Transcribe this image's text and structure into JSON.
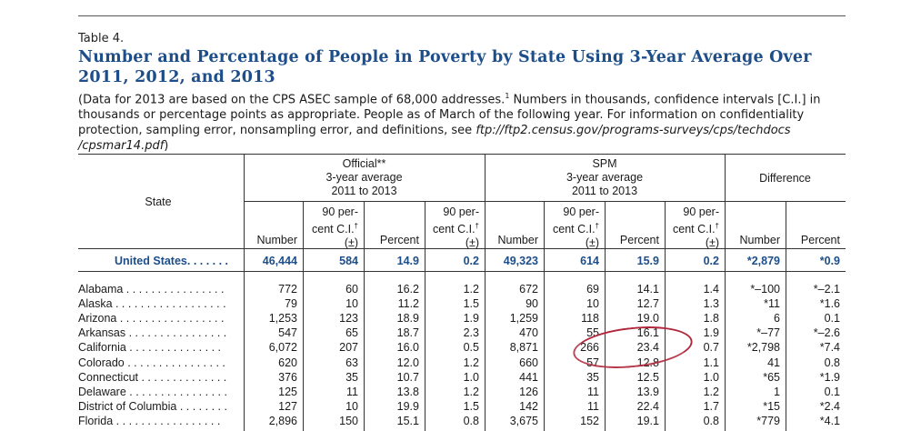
{
  "table_label": "Table 4.",
  "title": "Number and Percentage of People in Poverty by State Using 3-Year Average Over 2011, 2012, and 2013",
  "note": {
    "part1": "(Data for 2013 are based on the CPS ASEC sample of 68,000 addresses.",
    "footnote_mark": "1",
    "part2": " Numbers in thousands, confidence intervals [C.I.] in thousands or percentage points as appropriate. People as of March of the following year. For information on confidentiality protection, sampling error, nonsampling error, and definitions, see ",
    "ftp": "ftp://ftp2.census.gov/programs-surveys/cps/techdocs /cpsmar14.pdf",
    "close": ")"
  },
  "headers": {
    "state": "State",
    "official": [
      "Official**",
      "3-year average",
      "2011 to 2013"
    ],
    "spm": [
      "SPM",
      "3-year average",
      "2011 to 2013"
    ],
    "difference": "Difference",
    "number": "Number",
    "percent": "Percent",
    "ci_line1": "90 per-",
    "ci_line2": "cent C.I.",
    "dagger": "†",
    "pm": "(±)"
  },
  "us_row": {
    "state": "United States. . . . . . .",
    "values": [
      "46,444",
      "584",
      "14.9",
      "0.2",
      "49,323",
      "614",
      "15.9",
      "0.2",
      "*2,879",
      "*0.9"
    ]
  },
  "rows": [
    {
      "state": "Alabama . . . . . . . . . . . . . . . .",
      "values": [
        "772",
        "60",
        "16.2",
        "1.2",
        "672",
        "69",
        "14.1",
        "1.4",
        "*–100",
        "*–2.1"
      ]
    },
    {
      "state": "Alaska . . . . . . . . . . . . . . . . . .",
      "values": [
        "79",
        "10",
        "11.2",
        "1.5",
        "90",
        "10",
        "12.7",
        "1.3",
        "*11",
        "*1.6"
      ]
    },
    {
      "state": "Arizona . . . . . . . . . . . . . . . . .",
      "values": [
        "1,253",
        "123",
        "18.9",
        "1.9",
        "1,259",
        "118",
        "19.0",
        "1.8",
        "6",
        "0.1"
      ]
    },
    {
      "state": "Arkansas . . . . . . . . . . . . . . . .",
      "values": [
        "547",
        "65",
        "18.7",
        "2.3",
        "470",
        "55",
        "16.1",
        "1.9",
        "*–77",
        "*–2.6"
      ]
    },
    {
      "state": "California . . . . . . . . . . . . . . .",
      "values": [
        "6,072",
        "207",
        "16.0",
        "0.5",
        "8,871",
        "266",
        "23.4",
        "0.7",
        "*2,798",
        "*7.4"
      ]
    },
    {
      "state": "Colorado . . . . . . . . . . . . . . . .",
      "values": [
        "620",
        "63",
        "12.0",
        "1.2",
        "660",
        "57",
        "12.8",
        "1.1",
        "41",
        "0.8"
      ]
    },
    {
      "state": "Connecticut . . . . . . . . . . . . . .",
      "values": [
        "376",
        "35",
        "10.7",
        "1.0",
        "441",
        "35",
        "12.5",
        "1.0",
        "*65",
        "*1.9"
      ]
    },
    {
      "state": "Delaware . . . . . . . . . . . . . . . .",
      "values": [
        "125",
        "11",
        "13.8",
        "1.2",
        "126",
        "11",
        "13.9",
        "1.2",
        "1",
        "0.1"
      ]
    },
    {
      "state": "District of Columbia . . . . . . . .",
      "values": [
        "127",
        "10",
        "19.9",
        "1.5",
        "142",
        "11",
        "22.4",
        "1.7",
        "*15",
        "*2.4"
      ]
    },
    {
      "state": "Florida . . . . . . . . . . . . . . . . .",
      "values": [
        "2,896",
        "150",
        "15.1",
        "0.8",
        "3,675",
        "152",
        "19.1",
        "0.8",
        "*779",
        "*4.1"
      ]
    }
  ],
  "colors": {
    "title": "#1d4e89",
    "highlight_circle": "#b0263a"
  }
}
